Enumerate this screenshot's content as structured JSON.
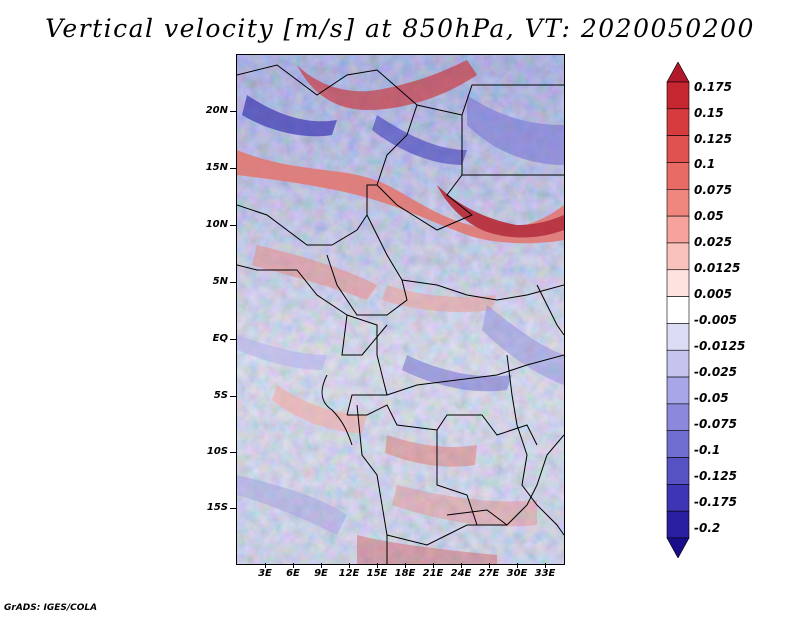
{
  "title": "Vertical velocity [m/s] at 850hPa, VT: 2020050200",
  "credit": "GrADS: IGES/COLA",
  "map": {
    "lat_labels": [
      "20N",
      "15N",
      "10N",
      "5N",
      "EQ",
      "5S",
      "10S",
      "15S"
    ],
    "lon_labels": [
      "3E",
      "6E",
      "9E",
      "12E",
      "15E",
      "18E",
      "21E",
      "24E",
      "27E",
      "30E",
      "33E"
    ]
  },
  "colorbar": {
    "labels": [
      "0.175",
      "0.15",
      "0.125",
      "0.1",
      "0.075",
      "0.05",
      "0.025",
      "0.0125",
      "0.005",
      "-0.005",
      "-0.0125",
      "-0.025",
      "-0.05",
      "-0.075",
      "-0.1",
      "-0.125",
      "-0.175",
      "-0.2"
    ],
    "colors": [
      "#b2182b",
      "#c6262f",
      "#d63b3d",
      "#e0524f",
      "#e96b65",
      "#f0877f",
      "#f5a39c",
      "#f9c2bd",
      "#fde2df",
      "#ffffff",
      "#dcdcf5",
      "#c4c4ef",
      "#a8a6e6",
      "#8c89dc",
      "#716ed2",
      "#5752c4",
      "#3d35b4",
      "#2a1ea3",
      "#1a0d8a"
    ]
  }
}
